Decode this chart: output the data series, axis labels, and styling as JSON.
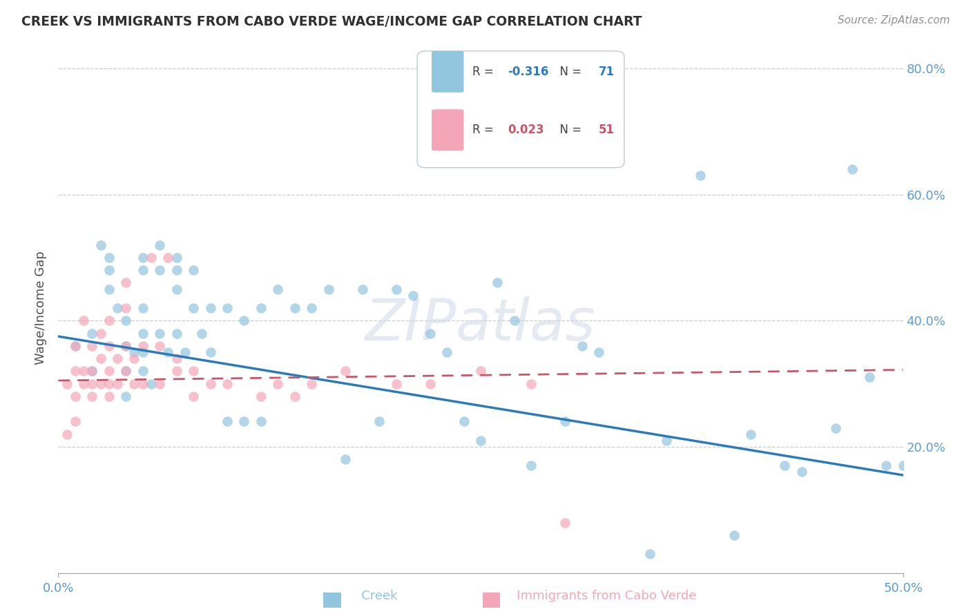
{
  "title": "CREEK VS IMMIGRANTS FROM CABO VERDE WAGE/INCOME GAP CORRELATION CHART",
  "source": "Source: ZipAtlas.com",
  "ylabel": "Wage/Income Gap",
  "xlim": [
    0.0,
    0.5
  ],
  "ylim": [
    0.0,
    0.84
  ],
  "creek_R": "-0.316",
  "creek_N": "71",
  "cabo_R": "0.023",
  "cabo_N": "51",
  "creek_color": "#92c5de",
  "cabo_color": "#f4a6b8",
  "creek_line_color": "#2b7bba",
  "cabo_line_color": "#c9556a",
  "watermark": "ZIPatlas",
  "creek_x": [
    0.01,
    0.02,
    0.02,
    0.025,
    0.03,
    0.03,
    0.03,
    0.035,
    0.04,
    0.04,
    0.04,
    0.04,
    0.045,
    0.05,
    0.05,
    0.05,
    0.05,
    0.05,
    0.05,
    0.055,
    0.06,
    0.06,
    0.06,
    0.065,
    0.07,
    0.07,
    0.07,
    0.07,
    0.075,
    0.08,
    0.08,
    0.085,
    0.09,
    0.09,
    0.1,
    0.1,
    0.11,
    0.11,
    0.12,
    0.12,
    0.13,
    0.14,
    0.15,
    0.16,
    0.17,
    0.18,
    0.19,
    0.2,
    0.21,
    0.22,
    0.23,
    0.24,
    0.25,
    0.26,
    0.27,
    0.28,
    0.3,
    0.31,
    0.32,
    0.35,
    0.36,
    0.38,
    0.4,
    0.41,
    0.43,
    0.44,
    0.46,
    0.47,
    0.48,
    0.49,
    0.5
  ],
  "creek_y": [
    0.36,
    0.38,
    0.32,
    0.52,
    0.5,
    0.48,
    0.45,
    0.42,
    0.4,
    0.36,
    0.32,
    0.28,
    0.35,
    0.5,
    0.48,
    0.42,
    0.38,
    0.35,
    0.32,
    0.3,
    0.52,
    0.48,
    0.38,
    0.35,
    0.5,
    0.48,
    0.45,
    0.38,
    0.35,
    0.48,
    0.42,
    0.38,
    0.42,
    0.35,
    0.42,
    0.24,
    0.4,
    0.24,
    0.42,
    0.24,
    0.45,
    0.42,
    0.42,
    0.45,
    0.18,
    0.45,
    0.24,
    0.45,
    0.44,
    0.38,
    0.35,
    0.24,
    0.21,
    0.46,
    0.4,
    0.17,
    0.24,
    0.36,
    0.35,
    0.03,
    0.21,
    0.63,
    0.06,
    0.22,
    0.17,
    0.16,
    0.23,
    0.64,
    0.31,
    0.17,
    0.17
  ],
  "cabo_x": [
    0.005,
    0.005,
    0.01,
    0.01,
    0.01,
    0.01,
    0.015,
    0.015,
    0.015,
    0.02,
    0.02,
    0.02,
    0.02,
    0.025,
    0.025,
    0.025,
    0.03,
    0.03,
    0.03,
    0.03,
    0.03,
    0.035,
    0.035,
    0.04,
    0.04,
    0.04,
    0.04,
    0.045,
    0.045,
    0.05,
    0.05,
    0.055,
    0.06,
    0.06,
    0.065,
    0.07,
    0.07,
    0.08,
    0.08,
    0.09,
    0.1,
    0.12,
    0.13,
    0.14,
    0.15,
    0.17,
    0.2,
    0.22,
    0.25,
    0.28,
    0.3
  ],
  "cabo_y": [
    0.3,
    0.22,
    0.24,
    0.28,
    0.32,
    0.36,
    0.3,
    0.32,
    0.4,
    0.28,
    0.3,
    0.32,
    0.36,
    0.3,
    0.34,
    0.38,
    0.28,
    0.3,
    0.32,
    0.36,
    0.4,
    0.3,
    0.34,
    0.32,
    0.36,
    0.42,
    0.46,
    0.3,
    0.34,
    0.3,
    0.36,
    0.5,
    0.3,
    0.36,
    0.5,
    0.32,
    0.34,
    0.28,
    0.32,
    0.3,
    0.3,
    0.28,
    0.3,
    0.28,
    0.3,
    0.32,
    0.3,
    0.3,
    0.32,
    0.3,
    0.08
  ],
  "creek_line_x0": 0.0,
  "creek_line_y0": 0.375,
  "creek_line_x1": 0.5,
  "creek_line_y1": 0.155,
  "cabo_line_x0": 0.0,
  "cabo_line_y0": 0.305,
  "cabo_line_x1": 0.5,
  "cabo_line_y1": 0.322
}
